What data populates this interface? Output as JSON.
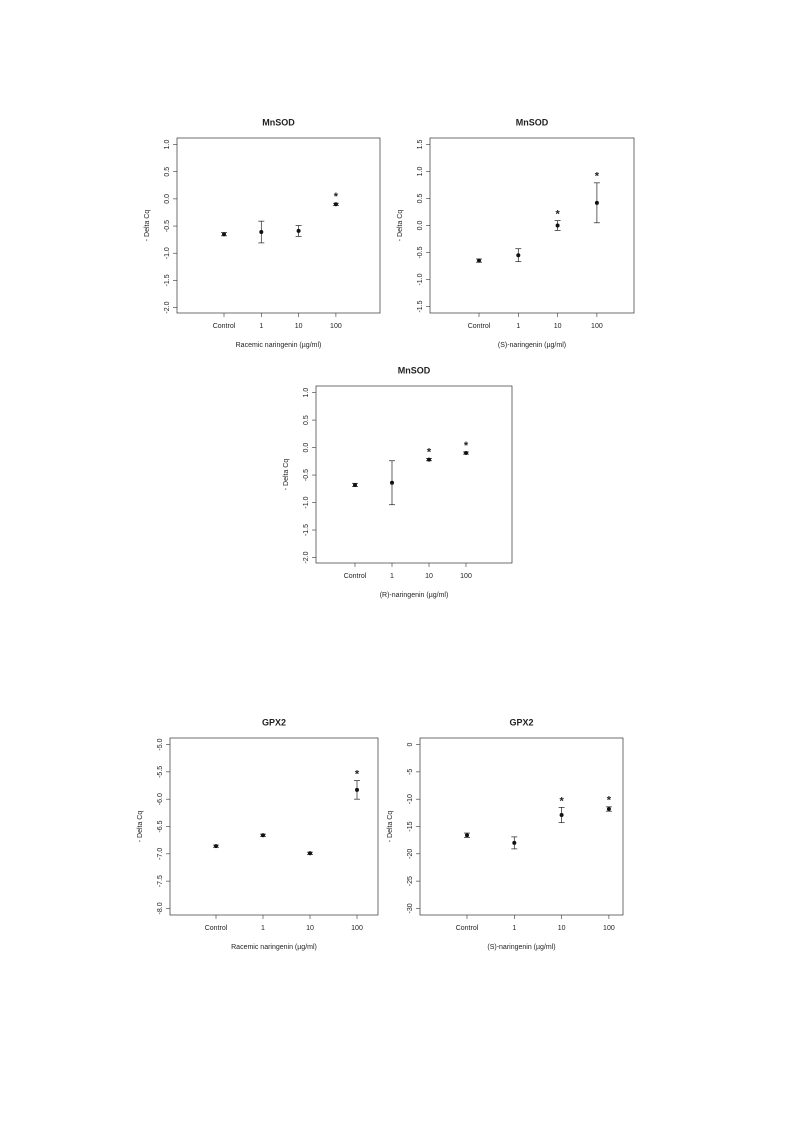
{
  "chart_data": [
    {
      "type": "errorbar",
      "title": "MnSOD",
      "xlabel": "Racemic naringenin (µg/ml)",
      "ylabel": "- Delta Cq",
      "categories": [
        "Control",
        "1",
        "10",
        "100"
      ],
      "values": [
        -0.65,
        -0.61,
        -0.59,
        -0.1
      ],
      "errors": [
        0.03,
        0.2,
        0.1,
        0.02
      ],
      "annotations": [
        null,
        null,
        null,
        "*"
      ],
      "ylim": [
        -2.1,
        1.12
      ],
      "yticks": [
        {
          "value": 1,
          "label": "1.0"
        },
        0.5,
        {
          "value": 0,
          "label": "0.0"
        },
        -0.5,
        {
          "value": -1,
          "label": "-1.0"
        },
        -1.5,
        {
          "value": -2,
          "label": "-2.0"
        }
      ]
    },
    {
      "type": "errorbar",
      "title": "MnSOD",
      "xlabel": "(S)-naringenin (µg/ml)",
      "ylabel": "- Delta Cq",
      "categories": [
        "Control",
        "1",
        "10",
        "100"
      ],
      "values": [
        -0.65,
        -0.55,
        0.0,
        0.42
      ],
      "errors": [
        0.03,
        0.12,
        0.09,
        0.37
      ],
      "annotations": [
        null,
        null,
        "*",
        "*"
      ],
      "ylim": [
        -1.62,
        1.62
      ],
      "yticks": [
        1.5,
        {
          "value": 1,
          "label": "1.0"
        },
        0.5,
        {
          "value": 0,
          "label": "0.0"
        },
        -0.5,
        {
          "value": -1,
          "label": "-1.0"
        },
        -1.5
      ]
    },
    {
      "type": "errorbar",
      "title": "MnSOD",
      "xlabel": "(R)-naringenin (µg/ml)",
      "ylabel": "- Delta Cq",
      "categories": [
        "Control",
        "1",
        "10",
        "100"
      ],
      "values": [
        -0.68,
        -0.64,
        -0.22,
        -0.1
      ],
      "errors": [
        0.03,
        0.4,
        0.02,
        0.02
      ],
      "annotations": [
        null,
        null,
        "*",
        "*"
      ],
      "ylim": [
        -2.1,
        1.12
      ],
      "yticks": [
        {
          "value": 1,
          "label": "1.0"
        },
        0.5,
        {
          "value": 0,
          "label": "0.0"
        },
        -0.5,
        {
          "value": -1,
          "label": "-1.0"
        },
        -1.5,
        {
          "value": -2,
          "label": "-2.0"
        }
      ]
    },
    {
      "type": "errorbar",
      "title": "GPX2",
      "xlabel": "Racemic naringenin (µg/ml)",
      "ylabel": "- Delta Cq",
      "categories": [
        "Control",
        "1",
        "10",
        "100"
      ],
      "values": [
        -6.86,
        -6.66,
        -6.99,
        -5.83
      ],
      "errors": [
        0.02,
        0.02,
        0.02,
        0.17
      ],
      "annotations": [
        null,
        null,
        null,
        "*"
      ],
      "ylim": [
        -8.12,
        -4.88
      ],
      "yticks": [
        {
          "value": -5,
          "label": "-5.0"
        },
        -5.5,
        {
          "value": -6,
          "label": "-6.0"
        },
        -6.5,
        {
          "value": -7,
          "label": "-7.0"
        },
        -7.5,
        {
          "value": -8,
          "label": "-8.0"
        }
      ]
    },
    {
      "type": "errorbar",
      "title": "GPX2",
      "xlabel": "(S)-naringenin (µg/ml)",
      "ylabel": "- Delta Cq",
      "categories": [
        "Control",
        "1",
        "10",
        "100"
      ],
      "values": [
        -16.6,
        -18.0,
        -12.9,
        -11.8
      ],
      "errors": [
        0.4,
        1.1,
        1.4,
        0.4
      ],
      "annotations": [
        null,
        null,
        "*",
        "*"
      ],
      "ylim": [
        -31.2,
        1.2
      ],
      "yticks": [
        0,
        -5,
        -10,
        -15,
        -20,
        -25,
        -30
      ]
    }
  ]
}
